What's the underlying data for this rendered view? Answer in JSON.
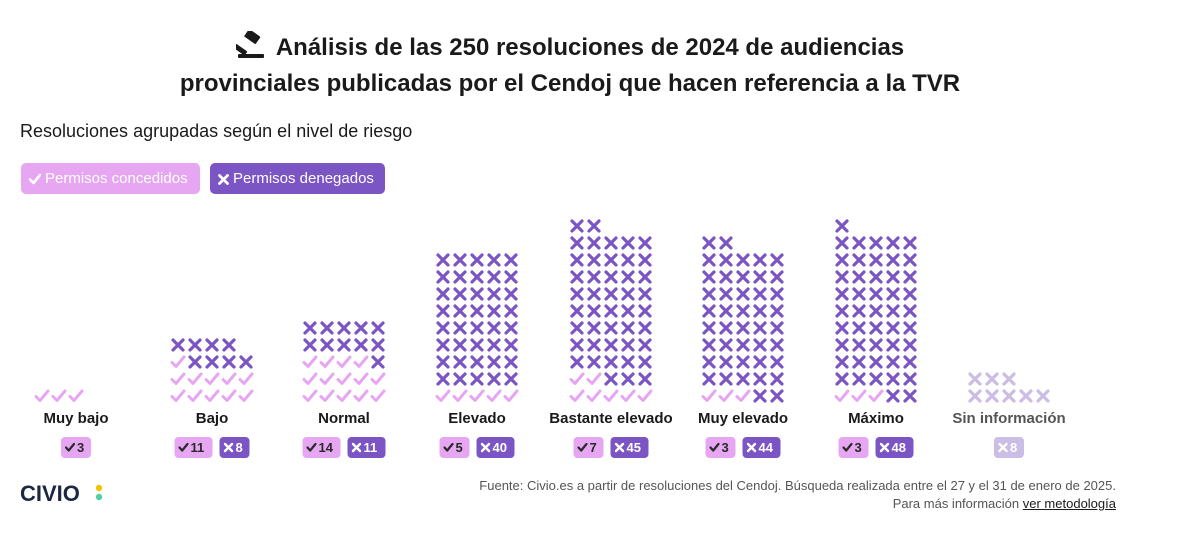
{
  "title": {
    "line1": "Análisis de las 250 resoluciones de 2024 de audiencias",
    "line2": "provinciales publicadas por el Cendoj que hacen referencia a la TVR"
  },
  "subtitle": "Resoluciones agrupadas según el nivel de riesgo",
  "legend": {
    "granted": "Permisos concedidos",
    "denied": "Permisos denegados"
  },
  "colors": {
    "granted": "#e6a6f2",
    "denied": "#7b55c4",
    "unknown": "#cbbde6",
    "granted_badge": "#e6a6f2",
    "denied_badge": "#7b55c4"
  },
  "chart_data": {
    "type": "unit",
    "categories": [
      "Muy bajo",
      "Bajo",
      "Normal",
      "Elevado",
      "Bastante elevado",
      "Muy elevado",
      "Máximo",
      "Sin información"
    ],
    "series": [
      {
        "name": "Permisos concedidos",
        "values": [
          3,
          11,
          14,
          5,
          7,
          3,
          3,
          0
        ]
      },
      {
        "name": "Permisos denegados",
        "values": [
          0,
          8,
          11,
          40,
          45,
          44,
          48,
          0
        ]
      }
    ],
    "unknown": [
      0,
      0,
      0,
      0,
      0,
      0,
      0,
      8
    ]
  },
  "footer": {
    "logo": "CIVIO",
    "source": "Fuente: Civio.es a partir de resoluciones del Cendoj. Búsqueda realizada entre el 27 y el 31 de enero de 2025.",
    "more_prefix": "Para más información",
    "method_link": "ver metodología"
  }
}
